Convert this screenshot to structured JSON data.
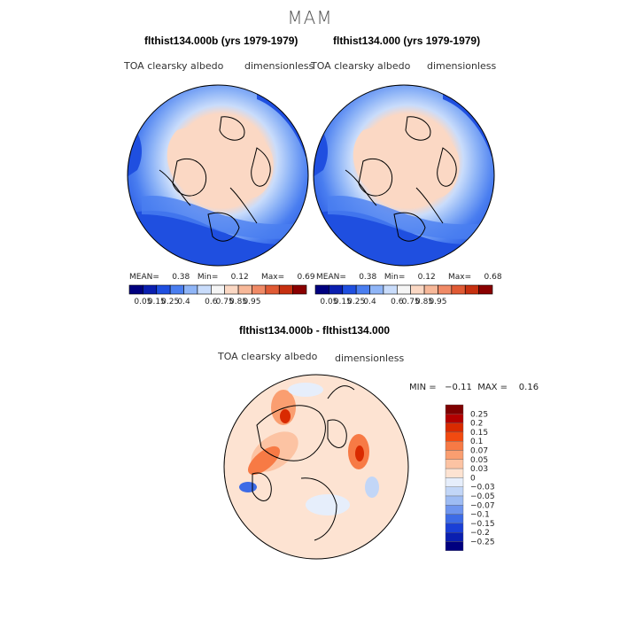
{
  "season": "MAM",
  "panels": [
    {
      "title": "flthist134.000b (yrs 1979-1979)",
      "variable": "TOA clearsky albedo",
      "units": "dimensionless",
      "stats": {
        "mean_label": "MEAN=",
        "mean": "0.38",
        "min_label": "Min=",
        "min": "0.12",
        "max_label": "Max=",
        "max": "0.69"
      }
    },
    {
      "title": "flthist134.000 (yrs 1979-1979)",
      "variable": "TOA clearsky albedo",
      "units": "dimensionless",
      "stats": {
        "mean_label": "MEAN=",
        "mean": "0.38",
        "min_label": "Min=",
        "min": "0.12",
        "max_label": "Max=",
        "max": "0.68"
      }
    }
  ],
  "diff": {
    "title": "flthist134.000b - flthist134.000",
    "variable": "TOA clearsky albedo",
    "units": "dimensionless",
    "stats": {
      "min_label": "MIN =",
      "min": "−0.11",
      "max_label": "MAX =",
      "max": "0.16"
    }
  },
  "chart_data": [
    {
      "type": "heatmap",
      "projection": "north-polar-stereographic",
      "title": "flthist134.000b (yrs 1979-1979)",
      "field": "TOA clearsky albedo",
      "units": "dimensionless",
      "mean": 0.38,
      "min": 0.12,
      "max": 0.69,
      "colorbar_levels": [
        0.05,
        0.15,
        0.25,
        0.4,
        0.6,
        0.75,
        0.85,
        0.95
      ],
      "colorbar_labels": [
        "0.05",
        "0.15",
        "0.25",
        "0.4",
        "0.6",
        "0.75",
        "0.85",
        "0.95"
      ],
      "colorbar_colors": [
        "#00007f",
        "#0a1fb0",
        "#1f4fe0",
        "#4a7ef0",
        "#8fb5f7",
        "#c9dcfb",
        "#f5f5f5",
        "#fbd8c4",
        "#f7b899",
        "#f08a66",
        "#e05a34",
        "#c73010",
        "#8a0000"
      ]
    },
    {
      "type": "heatmap",
      "projection": "north-polar-stereographic",
      "title": "flthist134.000 (yrs 1979-1979)",
      "field": "TOA clearsky albedo",
      "units": "dimensionless",
      "mean": 0.38,
      "min": 0.12,
      "max": 0.68,
      "colorbar_levels": [
        0.05,
        0.15,
        0.25,
        0.4,
        0.6,
        0.75,
        0.85,
        0.95
      ],
      "colorbar_labels": [
        "0.05",
        "0.15",
        "0.25",
        "0.4",
        "0.6",
        "0.75",
        "0.85",
        "0.95"
      ],
      "colorbar_colors": [
        "#00007f",
        "#0a1fb0",
        "#1f4fe0",
        "#4a7ef0",
        "#8fb5f7",
        "#c9dcfb",
        "#f5f5f5",
        "#fbd8c4",
        "#f7b899",
        "#f08a66",
        "#e05a34",
        "#c73010",
        "#8a0000"
      ]
    },
    {
      "type": "heatmap",
      "projection": "north-polar-stereographic",
      "title": "flthist134.000b - flthist134.000",
      "field": "TOA clearsky albedo",
      "units": "dimensionless",
      "min": -0.11,
      "max": 0.16,
      "colorbar_levels": [
        0.25,
        0.2,
        0.15,
        0.1,
        0.07,
        0.05,
        0.03,
        0,
        -0.03,
        -0.05,
        -0.07,
        -0.1,
        -0.15,
        -0.2,
        -0.25
      ],
      "colorbar_labels": [
        "0.25",
        "0.2",
        "0.15",
        "0.1",
        "0.07",
        "0.05",
        "0.03",
        "0",
        "−0.03",
        "−0.05",
        "−0.07",
        "−0.1",
        "−0.15",
        "−0.2",
        "−0.25"
      ],
      "colorbar_colors": [
        "#7f0000",
        "#b30000",
        "#d92a00",
        "#f24a10",
        "#f77a45",
        "#fa9e70",
        "#fcc3a3",
        "#fde3d2",
        "#e6eefb",
        "#c2d6f7",
        "#9ebcf3",
        "#6f95ee",
        "#3d6be6",
        "#1a3fd6",
        "#0a1fb0",
        "#00007f"
      ]
    }
  ]
}
